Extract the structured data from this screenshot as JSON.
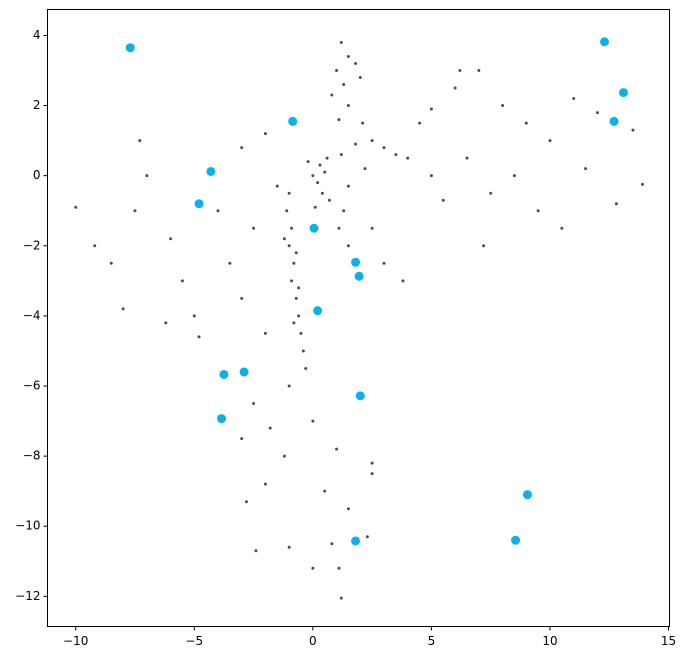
{
  "chart_data": {
    "type": "scatter",
    "xlim": [
      -11.19,
      15.04
    ],
    "ylim": [
      -12.86,
      4.74
    ],
    "xticks": [
      {
        "value": -10,
        "label": "−10"
      },
      {
        "value": -5,
        "label": "−5"
      },
      0,
      5,
      10,
      15
    ],
    "yticks": [
      4,
      2,
      0,
      {
        "value": -2,
        "label": "−2"
      },
      {
        "value": -4,
        "label": "−4"
      },
      {
        "value": -6,
        "label": "−6"
      },
      {
        "value": -8,
        "label": "−8"
      },
      {
        "value": -10,
        "label": "−10"
      },
      {
        "value": -12,
        "label": "−12"
      }
    ],
    "series": [
      {
        "color": "#000000",
        "x": [
          -1,
          -1.1,
          -0.9,
          -1,
          -0.8,
          -0.9,
          -0.7,
          -0.6,
          -0.5,
          -0.4,
          -0.3,
          -1.2,
          -0.7,
          -0.6,
          -0.8,
          1.2,
          1.5,
          1,
          1.8,
          1.3,
          2,
          1.5,
          1.1,
          2.1,
          0.8,
          0,
          0.3,
          0.5,
          0.2,
          0.6,
          -0.2,
          0.4,
          0.1,
          0.7,
          1.2,
          1.8,
          2.5,
          3,
          3.5,
          4,
          2.2,
          1.5,
          1.3,
          1.1,
          1.5,
          2.5,
          3,
          3.8,
          5,
          6,
          7,
          8,
          9,
          10,
          11,
          12,
          13.5,
          6.5,
          7.5,
          8.5,
          9.5,
          10.5,
          11.5,
          12.8,
          5.5,
          6.2,
          13.9,
          7.2,
          4.5,
          5,
          -10,
          -9.2,
          -8.5,
          -7.5,
          -7,
          -6,
          -5.5,
          -5,
          -4,
          -3.5,
          -3,
          -2.5,
          -2,
          -1.5,
          -3,
          -2,
          -7.3,
          -6.2,
          -8,
          -4.8,
          -2.5,
          -3,
          -2.8,
          -2.4,
          -1,
          -1.2,
          -1,
          0,
          0.5,
          1,
          1.2,
          1.5,
          2.5,
          2.3,
          0,
          -1.8,
          0.8,
          1.1,
          2.5,
          -2
        ],
        "values": [
          -0.5,
          -1,
          -1.5,
          -2,
          -2.5,
          -3,
          -3.5,
          -4,
          -4.5,
          -5,
          -5.5,
          -1.8,
          -2.2,
          -3.2,
          -4.2,
          3.8,
          3.4,
          3,
          3.2,
          2.6,
          2.8,
          2,
          1.6,
          1.5,
          2.3,
          0,
          0.3,
          0.1,
          -0.2,
          0.5,
          0.4,
          -0.5,
          -0.9,
          -0.7,
          0.6,
          0.9,
          1,
          0.8,
          0.6,
          0.5,
          0.2,
          -0.3,
          -1,
          -1.5,
          -2,
          -1.5,
          -2.5,
          -3,
          1.9,
          2.5,
          3,
          2,
          1.5,
          1,
          2.2,
          1.8,
          1.3,
          0.5,
          -0.5,
          0,
          -1,
          -1.5,
          0.2,
          -0.8,
          -0.7,
          3,
          -0.25,
          -2,
          1.5,
          0,
          -0.9,
          -2,
          -2.5,
          -1,
          0,
          -1.8,
          -3,
          -4,
          -1,
          -2.5,
          -3.5,
          -1.5,
          -4.5,
          -0.3,
          0.8,
          1.2,
          1,
          -4.2,
          -3.8,
          -4.6,
          -6.5,
          -7.5,
          -9.3,
          -10.7,
          -6,
          -8,
          -10.6,
          -11.2,
          -9,
          -7.8,
          -12.05,
          -9.5,
          -8.5,
          -10.3,
          -7,
          -7.2,
          -10.5,
          -11.2,
          -8.2,
          -8.8
        ]
      },
      {
        "color": "#0cb0ea",
        "x": [
          -7.7,
          12.3,
          13.1,
          12.7,
          -0.85,
          -4.3,
          -4.8,
          0.05,
          1.8,
          1.95,
          0.2,
          -3.75,
          -2.9,
          -3.85,
          2.0,
          9.05,
          8.55,
          1.8
        ],
        "values": [
          3.65,
          3.82,
          2.37,
          1.55,
          1.55,
          0.12,
          -0.8,
          -1.5,
          -2.47,
          -2.87,
          -3.85,
          -5.67,
          -5.6,
          -6.93,
          -6.28,
          -9.1,
          -10.4,
          -10.42
        ]
      }
    ]
  }
}
